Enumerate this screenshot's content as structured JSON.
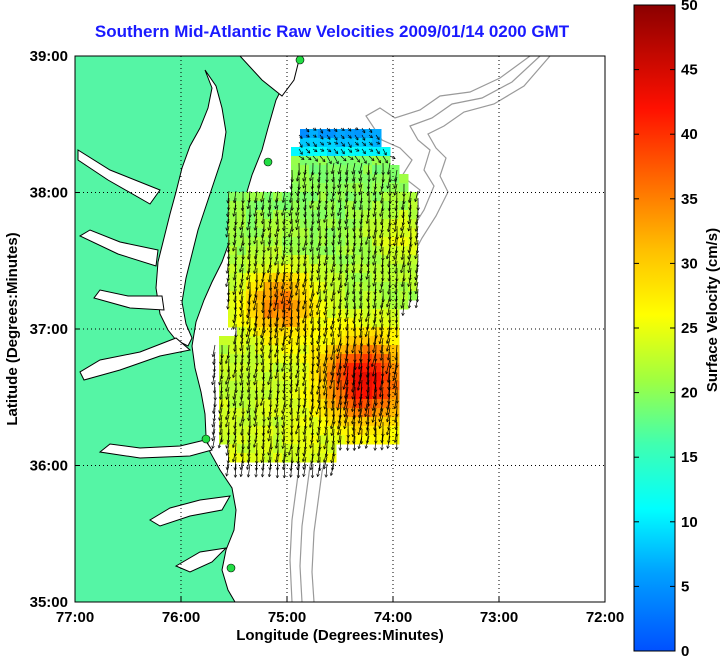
{
  "title": "Southern Mid-Atlantic Raw Velocities 2009/01/14 0200 GMT",
  "axes": {
    "xlabel": "Longitude (Degrees:Minutes)",
    "ylabel": "Latitude (Degrees:Minutes)",
    "x_ticks": [
      "77:00",
      "76:00",
      "75:00",
      "74:00",
      "73:00",
      "72:00"
    ],
    "y_ticks": [
      "35:00",
      "36:00",
      "37:00",
      "38:00",
      "39:00"
    ],
    "lon_range": [
      -77,
      -72
    ],
    "lat_range": [
      35,
      39
    ]
  },
  "colorbar": {
    "label": "Surface Velocity (cm/s)",
    "min": 0,
    "max": 50,
    "ticks": [
      "0",
      "5",
      "10",
      "15",
      "20",
      "25",
      "30",
      "35",
      "40",
      "45",
      "50"
    ]
  },
  "colors": {
    "land": "#55f5a5",
    "water": "#ffffff",
    "title": "#1a1aff",
    "bathymetry": "#9a9a9a"
  }
}
